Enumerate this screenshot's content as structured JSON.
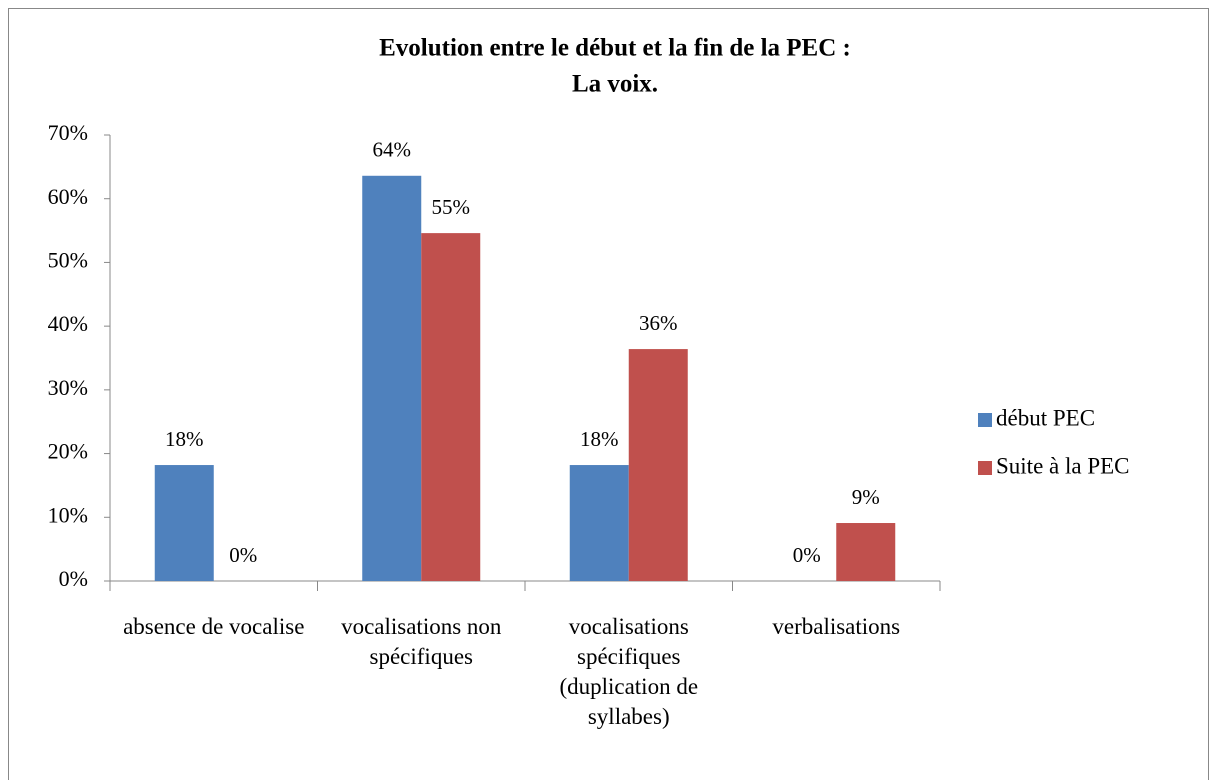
{
  "chart_data": {
    "type": "bar",
    "title": [
      "Evolution entre le début et la fin de la PEC :",
      "La voix."
    ],
    "categories": [
      "absence de vocalise",
      "vocalisations non spécifiques",
      "vocalisations spécifiques (duplication de syllabes)",
      "verbalisations"
    ],
    "series": [
      {
        "name": "début PEC",
        "color": "#4f81bd",
        "values": [
          18.2,
          63.6,
          18.2,
          0
        ],
        "value_labels": [
          "18%",
          "64%",
          "18%",
          "0%"
        ]
      },
      {
        "name": "Suite à la PEC",
        "color": "#c0504d",
        "values": [
          0,
          54.6,
          36.4,
          9.1
        ],
        "value_labels": [
          "0%",
          "55%",
          "36%",
          "9%"
        ]
      }
    ],
    "ylim": [
      0,
      70
    ],
    "yticks": [
      {
        "value": 0,
        "label": "0%"
      },
      {
        "value": 10,
        "label": "10%"
      },
      {
        "value": 20,
        "label": "20%"
      },
      {
        "value": 30,
        "label": "30%"
      },
      {
        "value": 40,
        "label": "40%"
      },
      {
        "value": 50,
        "label": "50%"
      },
      {
        "value": 60,
        "label": "60%"
      },
      {
        "value": 70,
        "label": "70%"
      }
    ],
    "legend": "right"
  }
}
